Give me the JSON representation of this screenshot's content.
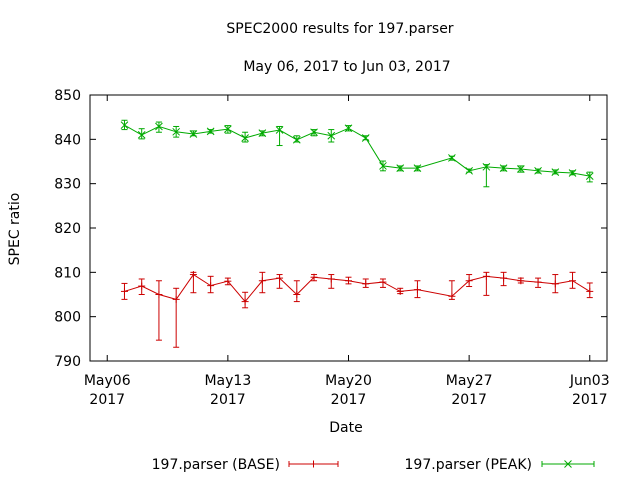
{
  "chart_data": {
    "type": "line",
    "title": "SPEC2000 results for 197.parser",
    "subtitle": "May 06, 2017 to Jun 03, 2017",
    "xlabel": "Date",
    "ylabel": "SPEC ratio",
    "ylim": [
      790,
      850
    ],
    "yticks": [
      790,
      800,
      810,
      820,
      830,
      840,
      850
    ],
    "xlim": [
      "2017-05-05",
      "2017-06-04"
    ],
    "xticks": [
      {
        "date": "2017-05-06",
        "line1": "May06",
        "line2": "2017"
      },
      {
        "date": "2017-05-13",
        "line1": "May13",
        "line2": "2017"
      },
      {
        "date": "2017-05-20",
        "line1": "May20",
        "line2": "2017"
      },
      {
        "date": "2017-05-27",
        "line1": "May27",
        "line2": "2017"
      },
      {
        "date": "2017-06-03",
        "line1": "Jun03",
        "line2": "2017"
      }
    ],
    "grid": false,
    "legend_position": "bottom",
    "series": [
      {
        "name": "197.parser (BASE)",
        "color": "#cc0000",
        "marker": "plus",
        "points": [
          {
            "x": "2017-05-07",
            "y": 805.7,
            "lo": 803.9,
            "hi": 807.5
          },
          {
            "x": "2017-05-08",
            "y": 806.9,
            "lo": 805.0,
            "hi": 808.5
          },
          {
            "x": "2017-05-09",
            "y": 805.0,
            "lo": 794.7,
            "hi": 808.1
          },
          {
            "x": "2017-05-10",
            "y": 803.9,
            "lo": 793.1,
            "hi": 806.4
          },
          {
            "x": "2017-05-11",
            "y": 809.5,
            "lo": 805.4,
            "hi": 810.0
          },
          {
            "x": "2017-05-12",
            "y": 807.0,
            "lo": 805.4,
            "hi": 809.1
          },
          {
            "x": "2017-05-13",
            "y": 808.0,
            "lo": 807.2,
            "hi": 808.7
          },
          {
            "x": "2017-05-14",
            "y": 803.4,
            "lo": 802.0,
            "hi": 805.5
          },
          {
            "x": "2017-05-15",
            "y": 808.1,
            "lo": 805.4,
            "hi": 810.0
          },
          {
            "x": "2017-05-16",
            "y": 808.7,
            "lo": 806.4,
            "hi": 809.5
          },
          {
            "x": "2017-05-17",
            "y": 805.0,
            "lo": 803.4,
            "hi": 808.1
          },
          {
            "x": "2017-05-18",
            "y": 808.9,
            "lo": 808.1,
            "hi": 809.5
          },
          {
            "x": "2017-05-19",
            "y": 808.5,
            "lo": 806.4,
            "hi": 809.5
          },
          {
            "x": "2017-05-20",
            "y": 808.1,
            "lo": 807.4,
            "hi": 808.9
          },
          {
            "x": "2017-05-21",
            "y": 807.4,
            "lo": 806.6,
            "hi": 808.5
          },
          {
            "x": "2017-05-22",
            "y": 807.8,
            "lo": 806.6,
            "hi": 808.5
          },
          {
            "x": "2017-05-23",
            "y": 805.7,
            "lo": 805.2,
            "hi": 806.4
          },
          {
            "x": "2017-05-24",
            "y": 806.1,
            "lo": 804.3,
            "hi": 808.1
          },
          {
            "x": "2017-05-26",
            "y": 804.6,
            "lo": 803.9,
            "hi": 808.1
          },
          {
            "x": "2017-05-27",
            "y": 808.1,
            "lo": 806.8,
            "hi": 809.5
          },
          {
            "x": "2017-05-28",
            "y": 809.1,
            "lo": 804.8,
            "hi": 810.0
          },
          {
            "x": "2017-05-29",
            "y": 808.7,
            "lo": 807.0,
            "hi": 810.0
          },
          {
            "x": "2017-05-30",
            "y": 808.1,
            "lo": 807.6,
            "hi": 808.7
          },
          {
            "x": "2017-05-31",
            "y": 807.8,
            "lo": 806.6,
            "hi": 808.7
          },
          {
            "x": "2017-06-01",
            "y": 807.4,
            "lo": 805.4,
            "hi": 809.5
          },
          {
            "x": "2017-06-02",
            "y": 808.1,
            "lo": 806.4,
            "hi": 810.0
          },
          {
            "x": "2017-06-03",
            "y": 805.7,
            "lo": 804.3,
            "hi": 807.6
          }
        ]
      },
      {
        "name": "197.parser (PEAK)",
        "color": "#00aa00",
        "marker": "cross",
        "points": [
          {
            "x": "2017-05-07",
            "y": 843.2,
            "lo": 842.2,
            "hi": 844.3
          },
          {
            "x": "2017-05-08",
            "y": 841.0,
            "lo": 840.1,
            "hi": 842.4
          },
          {
            "x": "2017-05-09",
            "y": 842.9,
            "lo": 841.6,
            "hi": 843.9
          },
          {
            "x": "2017-05-10",
            "y": 841.7,
            "lo": 840.5,
            "hi": 842.9
          },
          {
            "x": "2017-05-11",
            "y": 841.2,
            "lo": 840.8,
            "hi": 841.9
          },
          {
            "x": "2017-05-12",
            "y": 841.8,
            "lo": 841.4,
            "hi": 842.2
          },
          {
            "x": "2017-05-13",
            "y": 842.3,
            "lo": 841.4,
            "hi": 843.1
          },
          {
            "x": "2017-05-14",
            "y": 840.3,
            "lo": 839.4,
            "hi": 841.6
          },
          {
            "x": "2017-05-15",
            "y": 841.4,
            "lo": 840.8,
            "hi": 841.9
          },
          {
            "x": "2017-05-16",
            "y": 842.1,
            "lo": 838.6,
            "hi": 842.9
          },
          {
            "x": "2017-05-17",
            "y": 839.9,
            "lo": 839.4,
            "hi": 840.8
          },
          {
            "x": "2017-05-18",
            "y": 841.6,
            "lo": 840.8,
            "hi": 842.2
          },
          {
            "x": "2017-05-19",
            "y": 840.8,
            "lo": 839.4,
            "hi": 842.2
          },
          {
            "x": "2017-05-20",
            "y": 842.5,
            "lo": 841.9,
            "hi": 843.1
          },
          {
            "x": "2017-05-21",
            "y": 840.3,
            "lo": 839.9,
            "hi": 840.8
          },
          {
            "x": "2017-05-22",
            "y": 834.0,
            "lo": 832.9,
            "hi": 835.1
          },
          {
            "x": "2017-05-23",
            "y": 833.5,
            "lo": 832.9,
            "hi": 834.0
          },
          {
            "x": "2017-05-24",
            "y": 833.5,
            "lo": 832.9,
            "hi": 834.0
          },
          {
            "x": "2017-05-26",
            "y": 835.8,
            "lo": 835.3,
            "hi": 836.2
          },
          {
            "x": "2017-05-27",
            "y": 832.9,
            "lo": 832.6,
            "hi": 833.3
          },
          {
            "x": "2017-05-28",
            "y": 833.8,
            "lo": 829.3,
            "hi": 834.3
          },
          {
            "x": "2017-05-29",
            "y": 833.5,
            "lo": 832.9,
            "hi": 834.0
          },
          {
            "x": "2017-05-30",
            "y": 833.3,
            "lo": 832.6,
            "hi": 834.0
          },
          {
            "x": "2017-05-31",
            "y": 832.9,
            "lo": 832.4,
            "hi": 833.3
          },
          {
            "x": "2017-06-01",
            "y": 832.6,
            "lo": 832.2,
            "hi": 833.1
          },
          {
            "x": "2017-06-02",
            "y": 832.4,
            "lo": 832.0,
            "hi": 832.9
          },
          {
            "x": "2017-06-03",
            "y": 831.7,
            "lo": 830.4,
            "hi": 832.6
          }
        ]
      }
    ]
  }
}
